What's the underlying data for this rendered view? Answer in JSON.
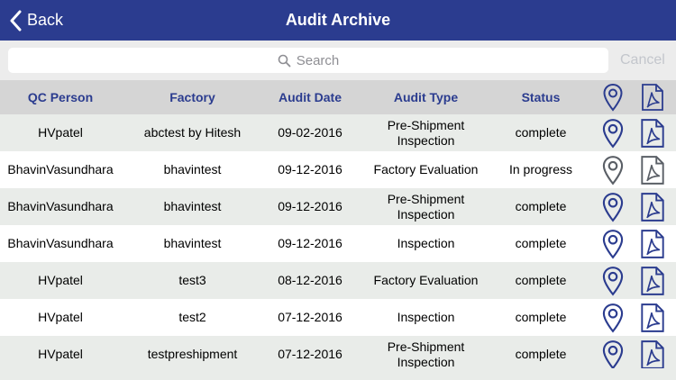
{
  "nav": {
    "back_label": "Back",
    "title": "Audit Archive"
  },
  "search": {
    "placeholder": "Search",
    "cancel_label": "Cancel"
  },
  "table": {
    "headers": {
      "qc_person": "QC Person",
      "factory": "Factory",
      "audit_date": "Audit Date",
      "audit_type": "Audit Type",
      "status": "Status"
    },
    "header_icons": [
      "location-pin-icon",
      "pdf-icon"
    ],
    "rows": [
      {
        "qc_person": "HVpatel",
        "factory": "abctest by Hitesh",
        "audit_date": "09-02-2016",
        "audit_type": "Pre-Shipment Inspection",
        "status": "complete"
      },
      {
        "qc_person": "BhavinVasundhara",
        "factory": "bhavintest",
        "audit_date": "09-12-2016",
        "audit_type": "Factory Evaluation",
        "status": "In progress"
      },
      {
        "qc_person": "BhavinVasundhara",
        "factory": "bhavintest",
        "audit_date": "09-12-2016",
        "audit_type": "Pre-Shipment Inspection",
        "status": "complete"
      },
      {
        "qc_person": "BhavinVasundhara",
        "factory": "bhavintest",
        "audit_date": "09-12-2016",
        "audit_type": "Inspection",
        "status": "complete"
      },
      {
        "qc_person": "HVpatel",
        "factory": "test3",
        "audit_date": "08-12-2016",
        "audit_type": "Factory Evaluation",
        "status": "complete"
      },
      {
        "qc_person": "HVpatel",
        "factory": "test2",
        "audit_date": "07-12-2016",
        "audit_type": "Inspection",
        "status": "complete"
      },
      {
        "qc_person": "HVpatel",
        "factory": "testpreshipment",
        "audit_date": "07-12-2016",
        "audit_type": "Pre-Shipment Inspection",
        "status": "complete"
      }
    ]
  },
  "colors": {
    "nav_bg": "#2b3c8f",
    "accent": "#2b3c8f",
    "icon_active": "#2b3c8f",
    "icon_inactive": "#5a5f66",
    "row_alt": "#e9ece9"
  }
}
